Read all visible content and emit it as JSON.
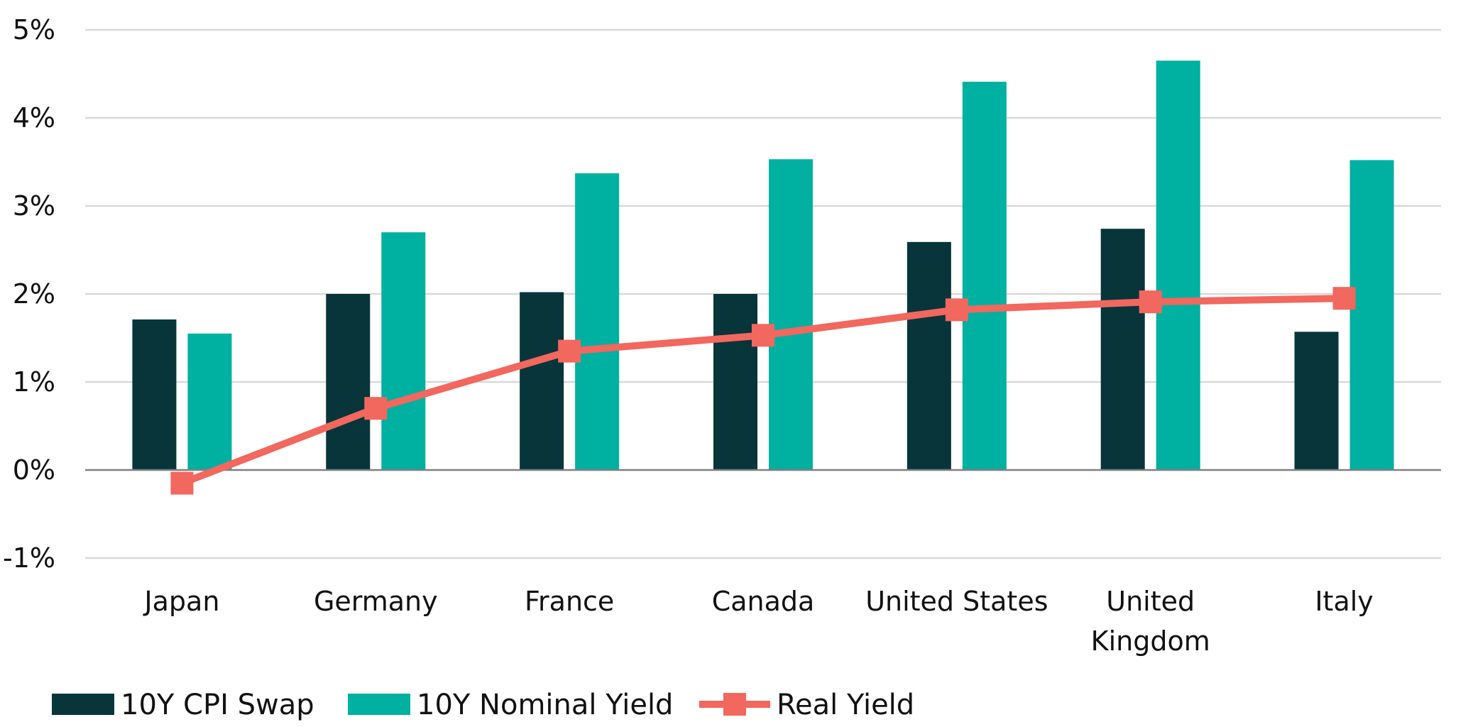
{
  "chart_data": {
    "type": "bar",
    "categories": [
      "Japan",
      "Germany",
      "France",
      "Canada",
      "United States",
      "United Kingdom",
      "Italy"
    ],
    "category_lines": [
      [
        "Japan"
      ],
      [
        "Germany"
      ],
      [
        "France"
      ],
      [
        "Canada"
      ],
      [
        "United States"
      ],
      [
        "United",
        "Kingdom"
      ],
      [
        "Italy"
      ]
    ],
    "series": [
      {
        "name": "10Y CPI Swap",
        "type": "bar",
        "color": "#07353a",
        "values": [
          1.71,
          2.0,
          2.02,
          2.0,
          2.59,
          2.74,
          1.57
        ]
      },
      {
        "name": "10Y Nominal Yield",
        "type": "bar",
        "color": "#00b0a0",
        "values": [
          1.55,
          2.7,
          3.37,
          3.53,
          4.41,
          4.65,
          3.52
        ]
      },
      {
        "name": "Real Yield",
        "type": "line",
        "marker": "square",
        "color": "#f2675e",
        "values": [
          -0.15,
          0.7,
          1.35,
          1.53,
          1.82,
          1.91,
          1.95
        ]
      }
    ],
    "y_ticks": [
      5,
      4,
      3,
      2,
      1,
      0,
      -1
    ],
    "y_tick_labels": [
      "5%",
      "4%",
      "3%",
      "2%",
      "1%",
      "0%",
      "-1%"
    ],
    "ylim": [
      -1,
      5
    ],
    "grid": true,
    "legend": "bottom-left",
    "colors": {
      "gridline": "#d9d9d9",
      "axis": "#808080"
    }
  }
}
